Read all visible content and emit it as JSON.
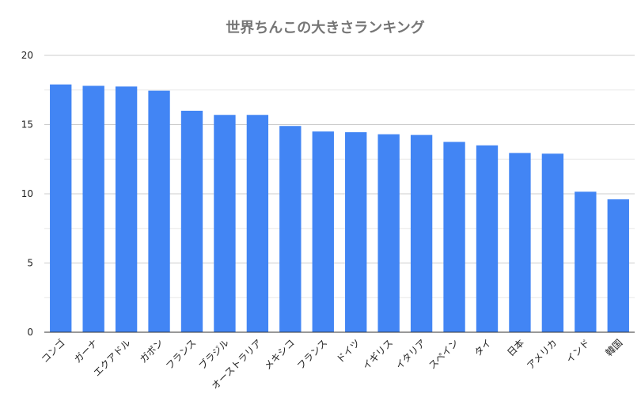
{
  "chart_data": {
    "type": "bar",
    "title": "世界ちんこの大きさランキング",
    "xlabel": "",
    "ylabel": "",
    "categories": [
      "コンゴ",
      "ガーナ",
      "エクアドル",
      "ガボン",
      "フランス",
      "ブラジル",
      "オーストラリア",
      "メキシコ",
      "フランス",
      "ドイツ",
      "イギリス",
      "イタリア",
      "スペイン",
      "タイ",
      "日本",
      "アメリカ",
      "インド",
      "韓国"
    ],
    "values": [
      17.9,
      17.8,
      17.75,
      17.45,
      16.0,
      15.7,
      15.7,
      14.9,
      14.5,
      14.45,
      14.3,
      14.25,
      13.75,
      13.5,
      12.95,
      12.9,
      10.15,
      9.6
    ],
    "ylim": [
      0,
      20
    ],
    "yticks": [
      0,
      5,
      10,
      15,
      20
    ],
    "grid": true,
    "legend": "none",
    "colors": {
      "bar": "#4285f4",
      "major_grid": "#cccccc",
      "minor_grid": "#e8e8e8",
      "axis": "#333333",
      "title": "#757575"
    }
  }
}
